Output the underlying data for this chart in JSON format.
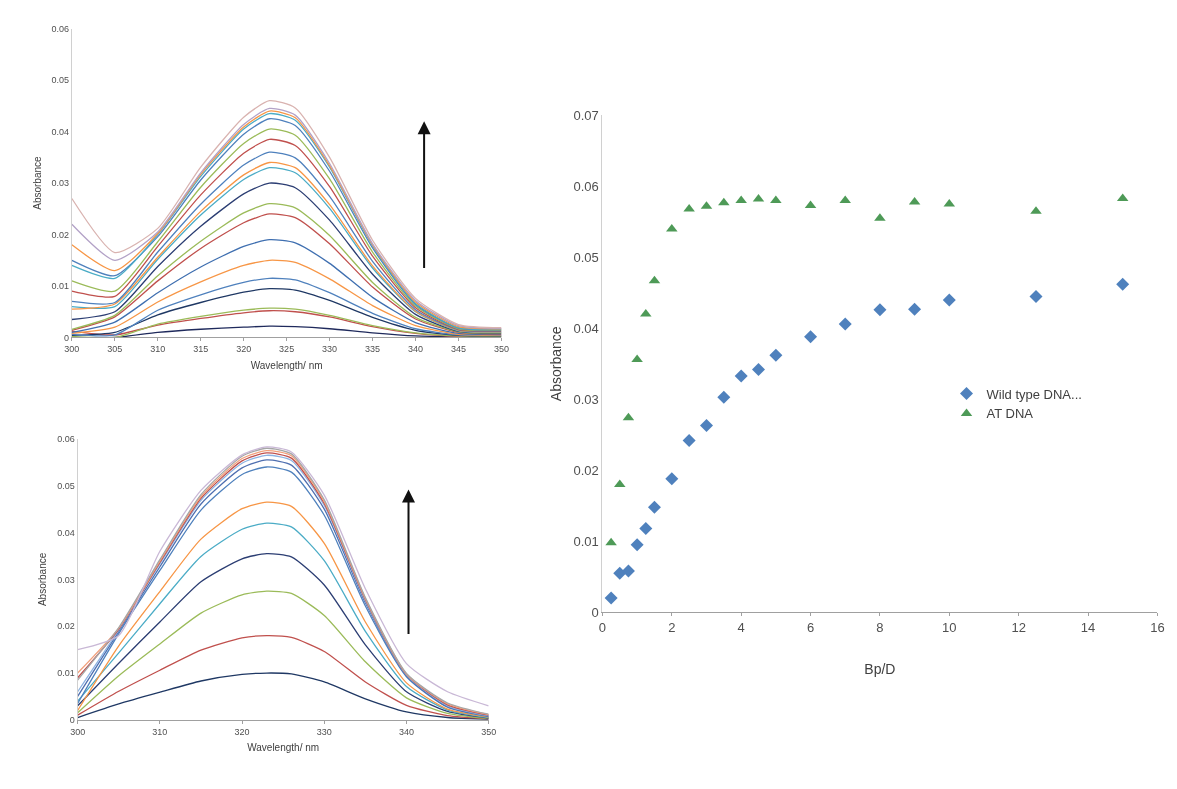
{
  "chart_data": [
    {
      "type": "line",
      "xlabel": "Wavelength/ nm",
      "ylabel": "Absorbance",
      "xlim": [
        300,
        350
      ],
      "xticks": [
        300,
        305,
        310,
        315,
        320,
        325,
        330,
        335,
        340,
        345,
        350
      ],
      "ylim": [
        0,
        0.06
      ],
      "yticks": [
        0,
        0.01,
        0.02,
        0.03,
        0.04,
        0.05,
        0.06
      ],
      "marker": "none",
      "x": [
        300,
        305,
        310,
        315,
        320,
        323,
        326,
        330,
        335,
        340,
        345,
        350
      ],
      "series": [
        {
          "color": "#1f2a5c",
          "values": [
            0,
            0,
            0.001,
            0.0016,
            0.002,
            0.0022,
            0.0021,
            0.0017,
            0.0009,
            0.0003,
            0.0001,
            0
          ]
        },
        {
          "color": "#c0504d",
          "values": [
            0.0012,
            0.0005,
            0.0024,
            0.0037,
            0.0048,
            0.0052,
            0.005,
            0.004,
            0.0021,
            0.0008,
            0.0002,
            0.0001
          ]
        },
        {
          "color": "#9bbb59",
          "values": [
            0.0002,
            0,
            0.0026,
            0.0041,
            0.0053,
            0.0057,
            0.0055,
            0.0043,
            0.0023,
            0.0009,
            0.0003,
            0.0002
          ]
        },
        {
          "color": "#1f3864",
          "values": [
            0.0004,
            0.001,
            0.0044,
            0.0068,
            0.0088,
            0.0095,
            0.0092,
            0.0072,
            0.0039,
            0.0014,
            0.0004,
            0.0003
          ]
        },
        {
          "color": "#4f81bd",
          "values": [
            0.0006,
            0.0005,
            0.0053,
            0.0083,
            0.0107,
            0.0115,
            0.0112,
            0.0087,
            0.0047,
            0.0017,
            0.0005,
            0.0004
          ]
        },
        {
          "color": "#f79646",
          "values": [
            0.0008,
            0.002,
            0.0069,
            0.0108,
            0.014,
            0.015,
            0.0146,
            0.0114,
            0.0062,
            0.0023,
            0.0006,
            0.0005
          ]
        },
        {
          "color": "#3f6fb0",
          "values": [
            0.001,
            0.003,
            0.0087,
            0.0137,
            0.0177,
            0.019,
            0.0184,
            0.0144,
            0.0078,
            0.0029,
            0.0008,
            0.0006
          ]
        },
        {
          "color": "#c0504d",
          "values": [
            0.0014,
            0.004,
            0.011,
            0.0173,
            0.0223,
            0.024,
            0.0233,
            0.0182,
            0.0098,
            0.0036,
            0.001,
            0.0007
          ]
        },
        {
          "color": "#9bbb59",
          "values": [
            0.0016,
            0.0043,
            0.012,
            0.0187,
            0.0242,
            0.026,
            0.0252,
            0.0198,
            0.0107,
            0.0039,
            0.0011,
            0.0008
          ]
        },
        {
          "color": "#2c3e73",
          "values": [
            0.0035,
            0.005,
            0.0138,
            0.0216,
            0.0279,
            0.03,
            0.0291,
            0.0228,
            0.0123,
            0.0045,
            0.0012,
            0.0009
          ]
        },
        {
          "color": "#4bacc6",
          "values": [
            0.006,
            0.006,
            0.0152,
            0.0238,
            0.0307,
            0.033,
            0.032,
            0.0251,
            0.0135,
            0.005,
            0.0013,
            0.001
          ]
        },
        {
          "color": "#f79646",
          "values": [
            0.0055,
            0.0065,
            0.0156,
            0.0245,
            0.0316,
            0.034,
            0.033,
            0.0258,
            0.0139,
            0.0051,
            0.0014,
            0.0011
          ]
        },
        {
          "color": "#4f81bd",
          "values": [
            0.007,
            0.0068,
            0.0166,
            0.0259,
            0.0335,
            0.036,
            0.0349,
            0.0274,
            0.0148,
            0.0054,
            0.0015,
            0.0012
          ]
        },
        {
          "color": "#c0504d",
          "values": [
            0.009,
            0.008,
            0.0177,
            0.0277,
            0.0358,
            0.0385,
            0.0373,
            0.0293,
            0.0158,
            0.0058,
            0.0016,
            0.0013
          ]
        },
        {
          "color": "#9bbb59",
          "values": [
            0.011,
            0.009,
            0.0186,
            0.0292,
            0.0377,
            0.0405,
            0.0393,
            0.0308,
            0.0166,
            0.0061,
            0.0017,
            0.0014
          ]
        },
        {
          "color": "#4f81bd",
          "values": [
            0.015,
            0.012,
            0.0196,
            0.0306,
            0.0395,
            0.0425,
            0.0412,
            0.0323,
            0.0174,
            0.0064,
            0.0018,
            0.0015
          ]
        },
        {
          "color": "#4bacc6",
          "values": [
            0.014,
            0.0115,
            0.02,
            0.0313,
            0.0405,
            0.0435,
            0.0422,
            0.0331,
            0.0178,
            0.0066,
            0.0019,
            0.0016
          ]
        },
        {
          "color": "#f79646",
          "values": [
            0.018,
            0.013,
            0.0202,
            0.0317,
            0.0409,
            0.044,
            0.0427,
            0.0334,
            0.018,
            0.0069,
            0.0021,
            0.0017
          ]
        },
        {
          "color": "#b3a2c7",
          "values": [
            0.022,
            0.015,
            0.0205,
            0.032,
            0.0414,
            0.0445,
            0.0432,
            0.0338,
            0.0182,
            0.0072,
            0.0023,
            0.0018
          ]
        },
        {
          "color": "#d9b3b0",
          "values": [
            0.027,
            0.0165,
            0.0212,
            0.0331,
            0.0428,
            0.046,
            0.0446,
            0.035,
            0.0189,
            0.0076,
            0.0025,
            0.0019
          ]
        }
      ]
    },
    {
      "type": "line",
      "xlabel": "Wavelength/ nm",
      "ylabel": "Absorbance",
      "xlim": [
        300,
        350
      ],
      "xticks": [
        300,
        310,
        320,
        330,
        340,
        350
      ],
      "ylim": [
        0,
        0.06
      ],
      "yticks": [
        0,
        0.01,
        0.02,
        0.03,
        0.04,
        0.05,
        0.06
      ],
      "marker": "none",
      "x": [
        300,
        305,
        310,
        315,
        320,
        323,
        326,
        330,
        335,
        340,
        345,
        350
      ],
      "series": [
        {
          "color": "#1f3864",
          "values": [
            0.0005,
            0.0034,
            0.0059,
            0.0083,
            0.0097,
            0.01,
            0.0098,
            0.0081,
            0.0045,
            0.0017,
            0.0005,
            0.0001
          ]
        },
        {
          "color": "#c0504d",
          "values": [
            0.001,
            0.0061,
            0.0106,
            0.0149,
            0.0175,
            0.018,
            0.0176,
            0.0146,
            0.0081,
            0.0031,
            0.0009,
            0.0002
          ]
        },
        {
          "color": "#9bbb59",
          "values": [
            0.0015,
            0.0094,
            0.0162,
            0.0228,
            0.0267,
            0.0275,
            0.027,
            0.0223,
            0.0124,
            0.0047,
            0.0014,
            0.0003
          ]
        },
        {
          "color": "#2c3e73",
          "values": [
            0.003,
            0.0121,
            0.0209,
            0.0295,
            0.0344,
            0.0355,
            0.0348,
            0.0288,
            0.016,
            0.006,
            0.0018,
            0.0004
          ]
        },
        {
          "color": "#4bacc6",
          "values": [
            0.004,
            0.0143,
            0.0248,
            0.0349,
            0.0407,
            0.042,
            0.0412,
            0.034,
            0.0189,
            0.0071,
            0.0021,
            0.0005
          ]
        },
        {
          "color": "#f79646",
          "values": [
            0.002,
            0.0158,
            0.0274,
            0.0386,
            0.0451,
            0.0465,
            0.0456,
            0.0377,
            0.0209,
            0.0079,
            0.0023,
            0.0006
          ]
        },
        {
          "color": "#4f81bd",
          "values": [
            0.0035,
            0.0184,
            0.0319,
            0.0448,
            0.0524,
            0.054,
            0.0529,
            0.0437,
            0.0243,
            0.0092,
            0.0027,
            0.0007
          ]
        },
        {
          "color": "#4f6fb0",
          "values": [
            0.005,
            0.0189,
            0.0327,
            0.0461,
            0.0538,
            0.0555,
            0.0544,
            0.045,
            0.025,
            0.0094,
            0.0028,
            0.0008
          ]
        },
        {
          "color": "#8db3e2",
          "values": [
            0.006,
            0.0192,
            0.0333,
            0.0469,
            0.0548,
            0.0565,
            0.0554,
            0.0458,
            0.0254,
            0.0096,
            0.003,
            0.0009
          ]
        },
        {
          "color": "#c0504d",
          "values": [
            0.009,
            0.0194,
            0.0336,
            0.0473,
            0.0553,
            0.057,
            0.0559,
            0.0462,
            0.0257,
            0.0097,
            0.0032,
            0.001
          ]
        },
        {
          "color": "#f2a07b",
          "values": [
            0.01,
            0.0196,
            0.0339,
            0.0477,
            0.0558,
            0.0575,
            0.0564,
            0.0466,
            0.0259,
            0.0098,
            0.0034,
            0.0011
          ]
        },
        {
          "color": "#a6a6a6",
          "values": [
            0.0085,
            0.0197,
            0.0342,
            0.0481,
            0.0563,
            0.058,
            0.0568,
            0.047,
            0.0261,
            0.0099,
            0.0036,
            0.0012
          ]
        },
        {
          "color": "#c9b8d6",
          "values": [
            0.015,
            0.018,
            0.036,
            0.049,
            0.0566,
            0.0583,
            0.0572,
            0.048,
            0.028,
            0.012,
            0.006,
            0.003
          ]
        }
      ]
    },
    {
      "type": "scatter",
      "xlabel": "Bp/D",
      "ylabel": "Absorbance",
      "xlim": [
        0,
        16
      ],
      "xticks": [
        0,
        2,
        4,
        6,
        8,
        10,
        12,
        14,
        16
      ],
      "ylim": [
        0,
        0.07
      ],
      "yticks": [
        0,
        0.01,
        0.02,
        0.03,
        0.04,
        0.05,
        0.06,
        0.07
      ],
      "legend": "right",
      "x": [
        0.25,
        0.5,
        0.75,
        1,
        1.25,
        1.5,
        2,
        2.5,
        3,
        3.5,
        4,
        4.5,
        5,
        6,
        7,
        8,
        9,
        10,
        12.5,
        15
      ],
      "series": [
        {
          "name": "Wild type DNA...",
          "color": "#4f81bd",
          "marker": "diamond",
          "values": [
            0.002,
            0.0055,
            0.0058,
            0.0095,
            0.0118,
            0.0148,
            0.0188,
            0.0242,
            0.0263,
            0.0303,
            0.0333,
            0.0342,
            0.0362,
            0.0388,
            0.0406,
            0.0426,
            0.0427,
            0.044,
            0.0445,
            0.0462
          ]
        },
        {
          "name": "AT DNA",
          "color": "#4e9a57",
          "marker": "triangle",
          "values": [
            0.0098,
            0.018,
            0.0274,
            0.0356,
            0.042,
            0.0467,
            0.054,
            0.0568,
            0.0572,
            0.0577,
            0.058,
            0.0582,
            0.058,
            0.0573,
            0.058,
            0.0555,
            0.0578,
            0.0575,
            0.0565,
            0.0583
          ]
        }
      ]
    }
  ]
}
